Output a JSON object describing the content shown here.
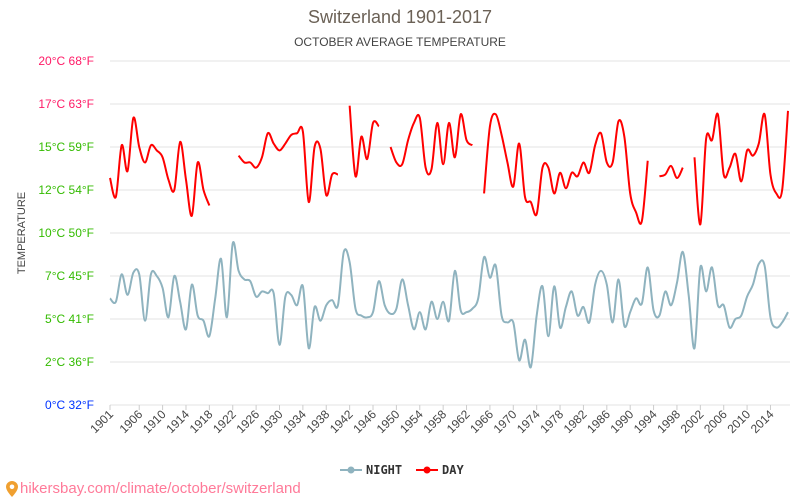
{
  "chart_data": {
    "type": "line",
    "title": "Switzerland 1901-2017",
    "subtitle": "OCTOBER AVERAGE TEMPERATURE",
    "ylabel": "TEMPERATURE",
    "xlabel": "",
    "xlim": [
      1901,
      2017
    ],
    "ylim": [
      0,
      20
    ],
    "grid": true,
    "legend_position": "bottom",
    "y_ticks": [
      {
        "value": 0,
        "label": "0°C 32°F",
        "color": "#0033ff"
      },
      {
        "value": 2.5,
        "label": "2°C 36°F",
        "color": "#33bb00"
      },
      {
        "value": 5,
        "label": "5°C 41°F",
        "color": "#33bb00"
      },
      {
        "value": 7.5,
        "label": "7°C 45°F",
        "color": "#33bb00"
      },
      {
        "value": 10,
        "label": "10°C 50°F",
        "color": "#33bb00"
      },
      {
        "value": 12.5,
        "label": "12°C 54°F",
        "color": "#33bb00"
      },
      {
        "value": 15,
        "label": "15°C 59°F",
        "color": "#33bb00"
      },
      {
        "value": 17.5,
        "label": "17°C 63°F",
        "color": "#ff1a66"
      },
      {
        "value": 20,
        "label": "20°C 68°F",
        "color": "#ff1a66"
      }
    ],
    "x_tick_labels": [
      "1901",
      "1906",
      "1910",
      "1914",
      "1918",
      "1922",
      "1926",
      "1930",
      "1934",
      "1938",
      "1942",
      "1946",
      "1950",
      "1954",
      "1958",
      "1962",
      "1966",
      "1970",
      "1974",
      "1978",
      "1982",
      "1986",
      "1990",
      "1994",
      "1998",
      "2002",
      "2006",
      "2010",
      "2014"
    ],
    "series": [
      {
        "name": "NIGHT",
        "color": "#8fb3bf",
        "values": [
          6.2,
          6.0,
          7.6,
          6.4,
          7.7,
          7.6,
          4.9,
          7.6,
          7.5,
          6.8,
          5.1,
          7.5,
          6.0,
          4.4,
          7.0,
          5.2,
          4.9,
          4.0,
          6.2,
          8.5,
          5.1,
          9.4,
          7.8,
          7.3,
          7.2,
          6.3,
          6.6,
          6.5,
          6.5,
          3.5,
          6.3,
          6.4,
          5.8,
          6.9,
          3.3,
          5.7,
          4.9,
          5.8,
          6.1,
          5.8,
          8.9,
          8.3,
          5.6,
          5.2,
          5.1,
          5.4,
          7.2,
          5.8,
          5.3,
          5.6,
          7.3,
          5.8,
          4.4,
          5.4,
          4.4,
          6.0,
          5.0,
          6.0,
          4.9,
          7.8,
          5.5,
          5.4,
          5.6,
          6.2,
          8.6,
          7.4,
          8.1,
          5.2,
          4.8,
          4.8,
          2.6,
          3.8,
          2.2,
          5.2,
          6.9,
          4.0,
          6.9,
          4.5,
          5.7,
          6.6,
          5.2,
          5.7,
          4.8,
          7.0,
          7.8,
          7.0,
          4.8,
          7.3,
          4.6,
          5.4,
          6.2,
          5.9,
          8.0,
          5.5,
          5.2,
          6.6,
          5.8,
          7.1,
          8.9,
          6.4,
          3.3,
          8.0,
          6.6,
          8.0,
          5.8,
          5.8,
          4.5,
          5.0,
          5.2,
          6.3,
          7.0,
          8.2,
          8.1,
          5.1,
          4.5,
          4.8,
          5.4
        ]
      },
      {
        "name": "DAY",
        "color": "#ff0000",
        "values": [
          13.2,
          12.1,
          15.1,
          13.6,
          16.7,
          15.0,
          14.1,
          15.1,
          14.8,
          14.4,
          13.1,
          12.5,
          15.3,
          13.1,
          11.0,
          14.1,
          12.5,
          11.6,
          null,
          null,
          null,
          null,
          14.5,
          14.1,
          14.1,
          13.8,
          14.4,
          15.8,
          15.2,
          14.8,
          15.2,
          15.7,
          15.8,
          15.9,
          11.8,
          15.0,
          14.9,
          12.2,
          13.4,
          13.4,
          null,
          17.4,
          13.3,
          15.6,
          14.3,
          16.4,
          16.2,
          null,
          15.0,
          14.1,
          14.0,
          15.4,
          16.4,
          16.7,
          13.8,
          13.7,
          16.4,
          14.0,
          16.4,
          14.4,
          16.9,
          15.4,
          15.1,
          null,
          12.3,
          16.2,
          16.9,
          15.7,
          14.1,
          12.7,
          15.2,
          12.1,
          11.8,
          11.1,
          13.8,
          13.8,
          12.3,
          13.5,
          12.6,
          13.5,
          13.3,
          14.1,
          13.5,
          15.1,
          15.8,
          14.1,
          14.1,
          16.5,
          15.6,
          12.3,
          11.2,
          10.7,
          14.2,
          null,
          13.3,
          13.4,
          13.9,
          13.2,
          13.8,
          null,
          14.4,
          10.5,
          15.5,
          15.4,
          16.9,
          13.4,
          13.8,
          14.6,
          13.0,
          14.8,
          14.5,
          15.2,
          16.9,
          13.4,
          12.3,
          12.5,
          17.1
        ]
      }
    ]
  },
  "legend": {
    "night": "NIGHT",
    "day": "DAY"
  },
  "footer": {
    "url": "hikersbay.com/climate/october/switzerland",
    "icon": "map-pin-icon"
  }
}
